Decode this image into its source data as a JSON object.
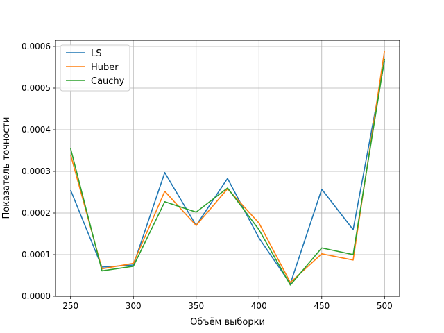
{
  "chart_data": {
    "type": "line",
    "title": "",
    "xlabel": "Объём выборки",
    "ylabel": "Показатель точности",
    "x": [
      250,
      275,
      300,
      325,
      350,
      375,
      400,
      425,
      450,
      475,
      500
    ],
    "xlim": [
      238,
      512
    ],
    "ylim": [
      0,
      0.000615
    ],
    "xticks": [
      250,
      300,
      350,
      400,
      450,
      500
    ],
    "xtick_labels": [
      "250",
      "300",
      "350",
      "400",
      "450",
      "500"
    ],
    "yticks": [
      0,
      0.0001,
      0.0002,
      0.0003,
      0.0004,
      0.0005,
      0.0006
    ],
    "ytick_labels": [
      "0.0000",
      "0.0001",
      "0.0002",
      "0.0003",
      "0.0004",
      "0.0005",
      "0.0006"
    ],
    "grid": true,
    "legend_position": "top-left",
    "series": [
      {
        "name": "LS",
        "color": "#1f77b4",
        "values": [
          0.000255,
          7e-05,
          7.5e-05,
          0.000297,
          0.00017,
          0.000283,
          0.00014,
          3e-05,
          0.000257,
          0.00016,
          0.000565
        ]
      },
      {
        "name": "Huber",
        "color": "#ff7f0e",
        "values": [
          0.00034,
          6.6e-05,
          7.9e-05,
          0.000252,
          0.00017,
          0.000258,
          0.000176,
          3.3e-05,
          0.000102,
          8.7e-05,
          0.00059
        ]
      },
      {
        "name": "Cauchy",
        "color": "#2ca02c",
        "values": [
          0.000355,
          6.1e-05,
          7.2e-05,
          0.000227,
          0.000202,
          0.00026,
          0.00016,
          2.7e-05,
          0.000116,
          0.0001,
          0.00057
        ]
      }
    ]
  }
}
